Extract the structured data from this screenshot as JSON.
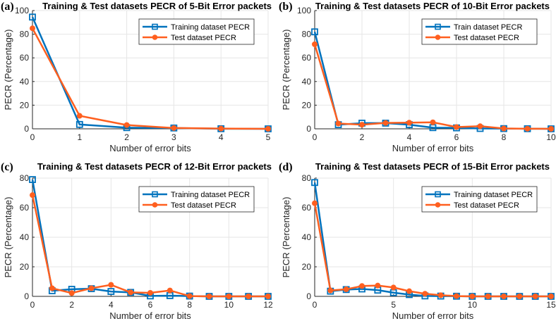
{
  "colors": {
    "train": "#0072BD",
    "test": "#FF5F1F",
    "grid": "#e6e6e6",
    "axis": "#262626"
  },
  "chart_data": [
    {
      "type": "line",
      "panel": "(a)",
      "title": "Training & Test datasets PECR of 5-Bit Error packets",
      "xlabel": "Number of error bits",
      "ylabel": "PECR (Percentage)",
      "xlim": [
        0,
        5
      ],
      "ylim": [
        0,
        100
      ],
      "xticks": [
        0,
        1,
        2,
        3,
        4,
        5
      ],
      "yticks": [
        0,
        20,
        40,
        60,
        80,
        100
      ],
      "grid": true,
      "legend": "top-right",
      "x": [
        0,
        1,
        2,
        3,
        4,
        5
      ],
      "series": [
        {
          "name": "Training dataset PECR",
          "marker": "square",
          "values": [
            94.5,
            3.7,
            1.0,
            0.7,
            0.1,
            0
          ]
        },
        {
          "name": "Test dataset PECR",
          "marker": "circle",
          "values": [
            85,
            11,
            3.2,
            0.7,
            0.2,
            0
          ]
        }
      ]
    },
    {
      "type": "line",
      "panel": "(b)",
      "title": "Training & Test datasets PECR of 10-Bit Error packets",
      "xlabel": "Number of error bits",
      "ylabel": "PECR (Percentage)",
      "xlim": [
        0,
        10
      ],
      "ylim": [
        0,
        100
      ],
      "xticks": [
        0,
        2,
        4,
        6,
        8,
        10
      ],
      "yticks": [
        0,
        20,
        40,
        60,
        80,
        100
      ],
      "grid": true,
      "legend": "top-right",
      "x": [
        0,
        1,
        2,
        3,
        4,
        5,
        6,
        7,
        8,
        9,
        10
      ],
      "series": [
        {
          "name": "Train dataset PECR",
          "marker": "square",
          "values": [
            82,
            3.5,
            4.8,
            4.8,
            3.5,
            1.0,
            0.8,
            0.3,
            0.2,
            0.1,
            0
          ]
        },
        {
          "name": "Test dataset PECR",
          "marker": "circle",
          "values": [
            71.5,
            4.5,
            3.5,
            5.0,
            5.2,
            5.5,
            1.5,
            2.2,
            0.3,
            0.1,
            0
          ]
        }
      ]
    },
    {
      "type": "line",
      "panel": "(c)",
      "title": "Training & Test datasets PECR of 12-Bit Error packets",
      "xlabel": "Number of error bits",
      "ylabel": "PECR (Percentage)",
      "xlim": [
        0,
        12
      ],
      "ylim": [
        0,
        80
      ],
      "xticks": [
        0,
        2,
        4,
        6,
        8,
        10,
        12
      ],
      "yticks": [
        0,
        20,
        40,
        60,
        80
      ],
      "grid": true,
      "legend": "top-right",
      "x": [
        0,
        1,
        2,
        3,
        4,
        5,
        6,
        7,
        8,
        9,
        10,
        11,
        12
      ],
      "series": [
        {
          "name": "Training dataset PECR",
          "marker": "square",
          "values": [
            79,
            3.8,
            4.8,
            5.2,
            3.3,
            2.7,
            0.3,
            0.5,
            0.2,
            0,
            0,
            0,
            0
          ]
        },
        {
          "name": "Test dataset PECR",
          "marker": "circle",
          "values": [
            68.5,
            5.5,
            2.2,
            5.5,
            7.8,
            2.7,
            2.4,
            4.0,
            0.2,
            0,
            0,
            0,
            0
          ]
        }
      ]
    },
    {
      "type": "line",
      "panel": "(d)",
      "title": "Training & Test datasets PECR of 15-Bit Error packets",
      "xlabel": "Number of error bits",
      "ylabel": "PECR (Percentage)",
      "xlim": [
        0,
        15
      ],
      "ylim": [
        0,
        80
      ],
      "xticks": [
        0,
        5,
        10,
        15
      ],
      "yticks": [
        0,
        20,
        40,
        60,
        80
      ],
      "grid": true,
      "legend": "top-right",
      "x": [
        0,
        1,
        2,
        3,
        4,
        5,
        6,
        7,
        8,
        9,
        10,
        11,
        12,
        13,
        14,
        15
      ],
      "series": [
        {
          "name": "Training dataset PECR",
          "marker": "square",
          "values": [
            77,
            3.5,
            4.6,
            5.0,
            4.2,
            2.5,
            1.2,
            0.3,
            0.2,
            0.1,
            0,
            0,
            0,
            0,
            0,
            0
          ]
        },
        {
          "name": "Test dataset PECR",
          "marker": "circle",
          "values": [
            63,
            4.0,
            4.8,
            7.0,
            7.3,
            6.0,
            3.5,
            1.8,
            0.8,
            0.2,
            0,
            0,
            0,
            0,
            0,
            0
          ]
        }
      ]
    }
  ]
}
